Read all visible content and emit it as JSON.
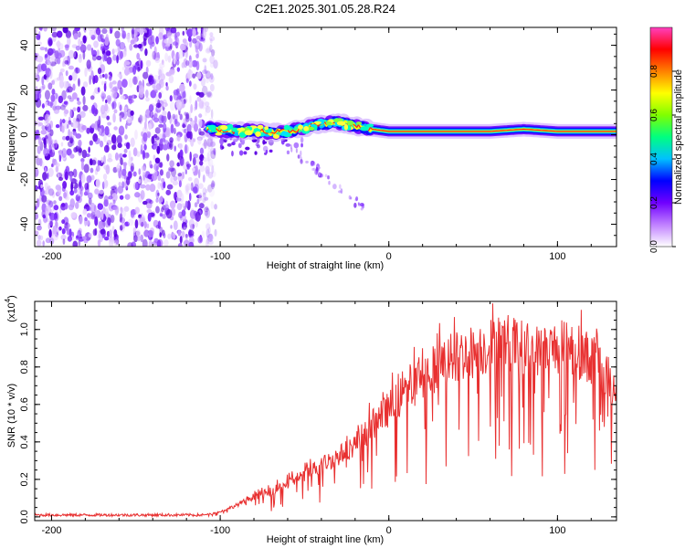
{
  "chart_data": [
    {
      "type": "heatmap",
      "title": "C2E1.2025.301.05.28.R24",
      "xlabel": "Height of straight line (km)",
      "ylabel": "Frequency (Hz)",
      "xlim": [
        -210,
        135
      ],
      "ylim": [
        -50,
        48
      ],
      "xticks": [
        -200,
        -100,
        0,
        100
      ],
      "xtick_labels": [
        "-200",
        "-100",
        "0",
        "100"
      ],
      "yticks": [
        -40,
        -20,
        0,
        20,
        40
      ],
      "ytick_labels": [
        "-40",
        "-20",
        "0",
        "20",
        "40"
      ],
      "colorbar": {
        "label": "Normalized spectral amplitude",
        "range": [
          0,
          1
        ],
        "ticks": [
          0.0,
          0.2,
          0.4,
          0.6,
          0.8
        ],
        "tick_labels": [
          "0.0",
          "0.2",
          "0.4",
          "0.6",
          "0.8"
        ],
        "colors": [
          "#ffffff",
          "#c080ff",
          "#7000ff",
          "#0000ff",
          "#00c0ff",
          "#00ff80",
          "#80ff00",
          "#ffff00",
          "#ff8000",
          "#ff0000",
          "#ff40c0"
        ]
      },
      "noise_region_x": [
        -210,
        -107
      ],
      "ridge": {
        "x": [
          -108,
          -100,
          -90,
          -80,
          -70,
          -60,
          -50,
          -40,
          -30,
          -20,
          -10,
          0,
          20,
          40,
          60,
          80,
          100,
          120,
          135
        ],
        "freq": [
          3,
          2,
          1.5,
          2,
          1,
          1.5,
          3,
          5,
          5.5,
          4,
          2.5,
          1.5,
          1.5,
          1.5,
          1.5,
          2.5,
          1.5,
          1.5,
          1.5
        ]
      }
    },
    {
      "type": "line",
      "xlabel": "Height of straight line (km)",
      "ylabel": "SNR (10 * v/v)",
      "y_multiplier": "(x10",
      "y_exponent": "4",
      "y_multiplier_close": ")",
      "xlim": [
        -210,
        135
      ],
      "ylim": [
        -0.02,
        1.15
      ],
      "xticks": [
        -200,
        -100,
        0,
        100
      ],
      "xtick_labels": [
        "-200",
        "-100",
        "0",
        "100"
      ],
      "yticks": [
        0.0,
        0.2,
        0.4,
        0.6,
        0.8,
        1.0
      ],
      "ytick_labels": [
        "0.0",
        "0.2",
        "0.4",
        "0.6",
        "0.8",
        "1.0"
      ],
      "series": [
        {
          "name": "SNR",
          "color": "#e83030",
          "envelope_x": [
            -210,
            -110,
            -100,
            -90,
            -80,
            -70,
            -60,
            -50,
            -40,
            -30,
            -20,
            -10,
            0,
            10,
            20,
            30,
            40,
            50,
            60,
            70,
            80,
            90,
            100,
            110,
            120,
            130,
            135
          ],
          "envelope_y": [
            0.01,
            0.01,
            0.03,
            0.07,
            0.12,
            0.15,
            0.2,
            0.25,
            0.31,
            0.36,
            0.43,
            0.54,
            0.64,
            0.74,
            0.83,
            0.9,
            0.95,
            0.98,
            1.01,
            1.04,
            1.0,
            0.98,
            1.01,
            0.99,
            0.94,
            0.82,
            0.75
          ]
        }
      ]
    }
  ]
}
